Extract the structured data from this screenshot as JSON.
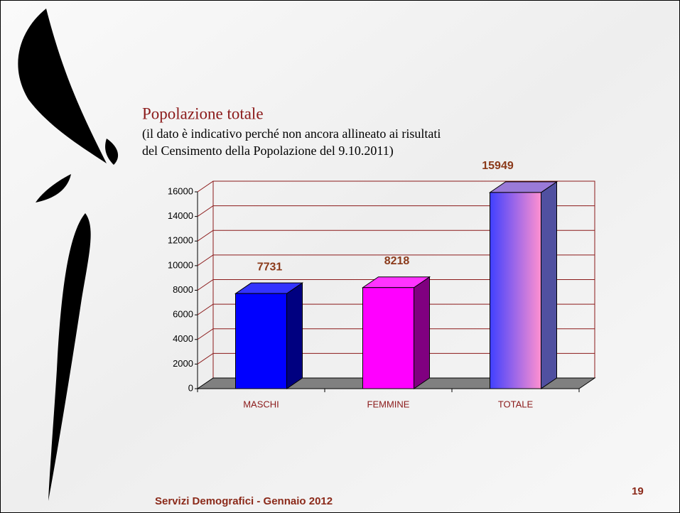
{
  "chart_data": {
    "type": "bar3d",
    "title": "Popolazione totale",
    "subtitle_lines": [
      "(il dato è indicativo perché non ancora allineato ai risultati",
      "del Censimento della Popolazione del 9.10.2011)"
    ],
    "categories": [
      "MASCHI",
      "FEMMINE",
      "TOTALE"
    ],
    "values": [
      7731,
      8218,
      15949
    ],
    "colors": [
      "#0000ff",
      "#ff00ff",
      "#ff90d0"
    ],
    "gradient": [
      false,
      false,
      true
    ],
    "ylim": [
      0,
      16000
    ],
    "yticks": [
      0,
      2000,
      4000,
      6000,
      8000,
      10000,
      12000,
      14000,
      16000
    ],
    "grid": true
  },
  "footer": {
    "text": "Servizi Demografici - Gennaio 2012",
    "page": "19"
  }
}
